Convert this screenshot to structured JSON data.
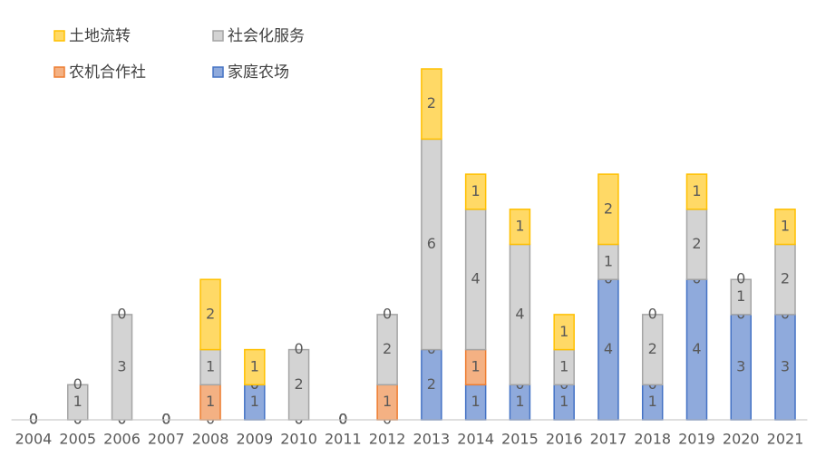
{
  "chart_data": {
    "type": "stacked_bar",
    "categories": [
      "2004",
      "2005",
      "2006",
      "2007",
      "2008",
      "2009",
      "2010",
      "2011",
      "2012",
      "2013",
      "2014",
      "2015",
      "2016",
      "2017",
      "2018",
      "2019",
      "2020",
      "2021"
    ],
    "series": [
      {
        "name": "家庭农场",
        "color": "#4472c4",
        "fill": "#8faadc",
        "values": [
          0,
          0,
          0,
          0,
          0,
          1,
          0,
          0,
          0,
          2,
          1,
          1,
          1,
          4,
          1,
          4,
          3,
          3
        ]
      },
      {
        "name": "农机合作社",
        "color": "#ed7d31",
        "fill": "#f4b183",
        "values": [
          0,
          0,
          0,
          0,
          1,
          0,
          0,
          0,
          1,
          0,
          1,
          0,
          0,
          0,
          0,
          0,
          0,
          0
        ]
      },
      {
        "name": "社会化服务",
        "color": "#a5a5a5",
        "fill": "#d3d3d3",
        "values": [
          0,
          1,
          3,
          0,
          1,
          0,
          2,
          0,
          2,
          6,
          4,
          4,
          1,
          1,
          2,
          2,
          1,
          2
        ]
      },
      {
        "name": "土地流转",
        "color": "#ffc000",
        "fill": "#ffd966",
        "values": [
          0,
          0,
          0,
          0,
          2,
          1,
          0,
          0,
          0,
          2,
          1,
          1,
          1,
          2,
          0,
          1,
          0,
          1
        ]
      }
    ],
    "ylim": [
      0,
      10
    ],
    "legend": "top-left"
  }
}
